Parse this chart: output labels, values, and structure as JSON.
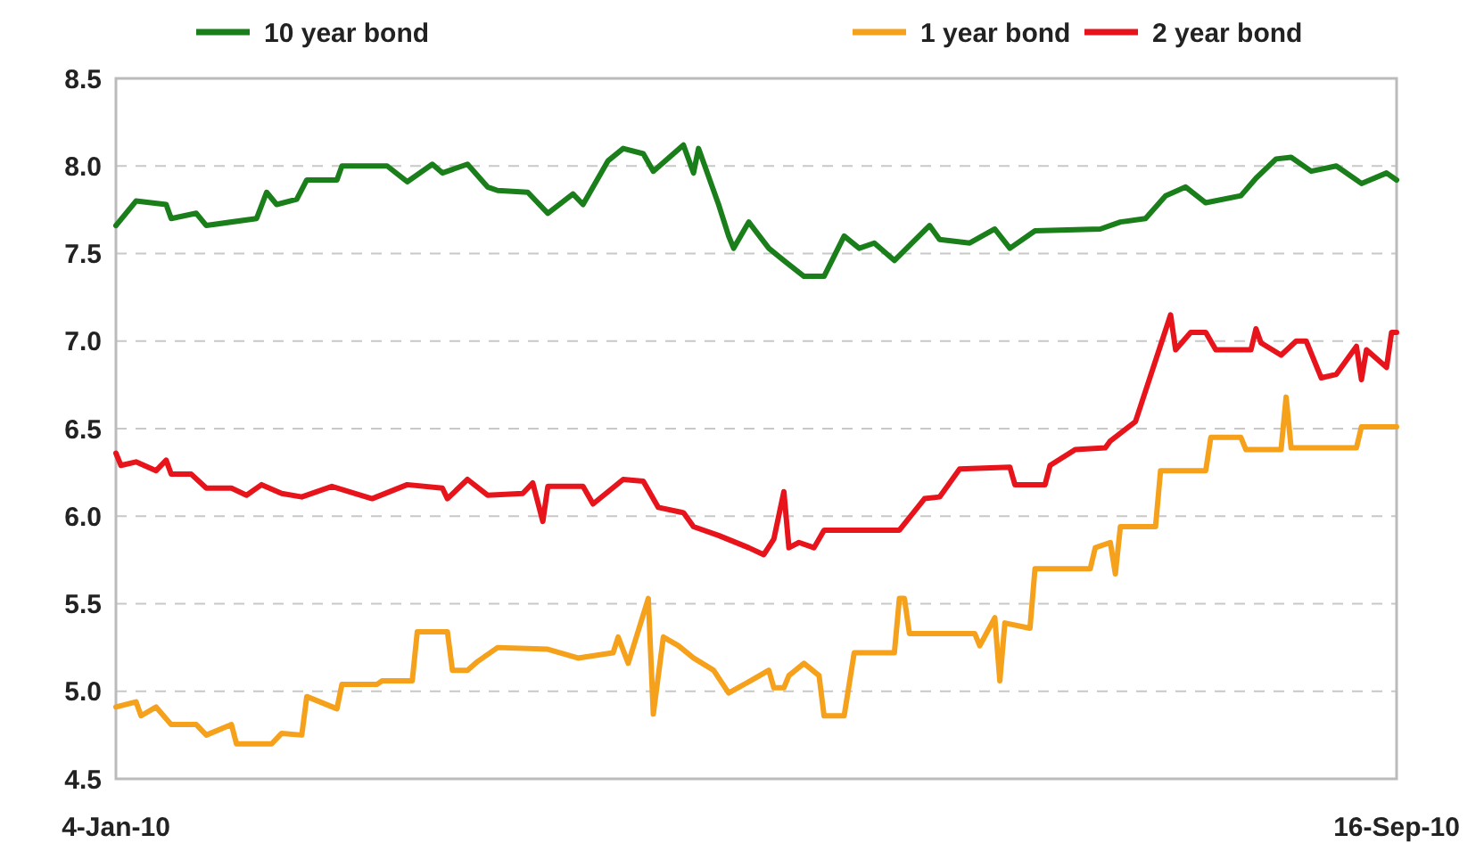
{
  "chart_data": {
    "type": "line",
    "xlim": [
      "2010-01-04",
      "2010-09-16"
    ],
    "xticks": [
      {
        "value": "2010-01-04",
        "label": "4-Jan-10"
      },
      {
        "value": "2010-09-16",
        "label": "16-Sep-10"
      }
    ],
    "ylim": [
      4.5,
      8.5
    ],
    "yticks": [
      4.5,
      {
        "value": 5,
        "label": "5.0"
      },
      5.5,
      {
        "value": 6,
        "label": "6.0"
      },
      6.5,
      {
        "value": 7,
        "label": "7.0"
      },
      7.5,
      {
        "value": 8,
        "label": "8.0"
      },
      8.5
    ],
    "grid": "y",
    "legend": "top",
    "line_style": "solid",
    "marker": "none",
    "series": [
      {
        "name": "10 year bond",
        "color": "#1a7f1a",
        "x": [
          "2010-01-04",
          "2010-01-08",
          "2010-01-14",
          "2010-01-15",
          "2010-01-20",
          "2010-01-22",
          "2010-02-01",
          "2010-02-03",
          "2010-02-05",
          "2010-02-09",
          "2010-02-11",
          "2010-02-17",
          "2010-02-18",
          "2010-02-27",
          "2010-03-03",
          "2010-03-08",
          "2010-03-10",
          "2010-03-15",
          "2010-03-19",
          "2010-03-21",
          "2010-03-27",
          "2010-03-31",
          "2010-04-05",
          "2010-04-07",
          "2010-04-12",
          "2010-04-15",
          "2010-04-19",
          "2010-04-21",
          "2010-04-27",
          "2010-04-29",
          "2010-04-30",
          "2010-05-04",
          "2010-05-06",
          "2010-05-07",
          "2010-05-10",
          "2010-05-14",
          "2010-05-17",
          "2010-05-21",
          "2010-05-25",
          "2010-05-29",
          "2010-06-01",
          "2010-06-04",
          "2010-06-08",
          "2010-06-15",
          "2010-06-17",
          "2010-06-23",
          "2010-06-28",
          "2010-07-01",
          "2010-07-06",
          "2010-07-19",
          "2010-07-23",
          "2010-07-28",
          "2010-08-01",
          "2010-08-05",
          "2010-08-09",
          "2010-08-16",
          "2010-08-19",
          "2010-08-23",
          "2010-08-26",
          "2010-08-30",
          "2010-09-04",
          "2010-09-09",
          "2010-09-14",
          "2010-09-16"
        ],
        "values": [
          7.66,
          7.8,
          7.78,
          7.7,
          7.73,
          7.66,
          7.7,
          7.85,
          7.78,
          7.81,
          7.92,
          7.92,
          8.0,
          8.0,
          7.91,
          8.01,
          7.96,
          8.01,
          7.88,
          7.86,
          7.85,
          7.73,
          7.84,
          7.78,
          8.03,
          8.1,
          8.07,
          7.97,
          8.12,
          7.96,
          8.1,
          7.78,
          7.6,
          7.53,
          7.68,
          7.53,
          7.46,
          7.37,
          7.37,
          7.6,
          7.53,
          7.56,
          7.46,
          7.66,
          7.58,
          7.56,
          7.64,
          7.53,
          7.63,
          7.64,
          7.68,
          7.7,
          7.83,
          7.88,
          7.79,
          7.83,
          7.93,
          8.04,
          8.05,
          7.97,
          8.0,
          7.9,
          7.96,
          7.92
        ]
      },
      {
        "name": "1 year bond",
        "color": "#f5a11c",
        "x": [
          "2010-01-04",
          "2010-01-08",
          "2010-01-09",
          "2010-01-12",
          "2010-01-15",
          "2010-01-20",
          "2010-01-22",
          "2010-01-27",
          "2010-01-28",
          "2010-02-04",
          "2010-02-06",
          "2010-02-10",
          "2010-02-11",
          "2010-02-17",
          "2010-02-18",
          "2010-02-25",
          "2010-02-26",
          "2010-03-04",
          "2010-03-05",
          "2010-03-11",
          "2010-03-12",
          "2010-03-15",
          "2010-03-17",
          "2010-03-21",
          "2010-03-31",
          "2010-04-06",
          "2010-04-13",
          "2010-04-14",
          "2010-04-16",
          "2010-04-20",
          "2010-04-21",
          "2010-04-23",
          "2010-04-26",
          "2010-04-29",
          "2010-05-03",
          "2010-05-06",
          "2010-05-11",
          "2010-05-14",
          "2010-05-15",
          "2010-05-17",
          "2010-05-18",
          "2010-05-21",
          "2010-05-24",
          "2010-05-25",
          "2010-05-29",
          "2010-05-31",
          "2010-06-08",
          "2010-06-09",
          "2010-06-10",
          "2010-06-11",
          "2010-06-24",
          "2010-06-25",
          "2010-06-28",
          "2010-06-29",
          "2010-06-30",
          "2010-07-05",
          "2010-07-06",
          "2010-07-17",
          "2010-07-18",
          "2010-07-21",
          "2010-07-22",
          "2010-07-23",
          "2010-07-30",
          "2010-07-31",
          "2010-08-09",
          "2010-08-10",
          "2010-08-16",
          "2010-08-17",
          "2010-08-24",
          "2010-08-25",
          "2010-08-26",
          "2010-09-08",
          "2010-09-09",
          "2010-09-16"
        ],
        "values": [
          4.91,
          4.94,
          4.86,
          4.91,
          4.81,
          4.81,
          4.75,
          4.81,
          4.7,
          4.7,
          4.76,
          4.75,
          4.97,
          4.9,
          5.04,
          5.04,
          5.06,
          5.06,
          5.34,
          5.34,
          5.12,
          5.12,
          5.17,
          5.25,
          5.24,
          5.19,
          5.22,
          5.31,
          5.16,
          5.53,
          4.87,
          5.31,
          5.26,
          5.19,
          5.12,
          4.99,
          5.07,
          5.12,
          5.02,
          5.02,
          5.09,
          5.16,
          5.09,
          4.86,
          4.86,
          5.22,
          5.22,
          5.53,
          5.53,
          5.33,
          5.33,
          5.26,
          5.42,
          5.06,
          5.39,
          5.36,
          5.7,
          5.7,
          5.82,
          5.85,
          5.67,
          5.94,
          5.94,
          6.26,
          6.26,
          6.45,
          6.45,
          6.38,
          6.38,
          6.68,
          6.39,
          6.39,
          6.51,
          6.51
        ]
      },
      {
        "name": "2 year bond",
        "color": "#e8141c",
        "x": [
          "2010-01-04",
          "2010-01-05",
          "2010-01-08",
          "2010-01-12",
          "2010-01-14",
          "2010-01-15",
          "2010-01-19",
          "2010-01-22",
          "2010-01-27",
          "2010-01-30",
          "2010-02-02",
          "2010-02-06",
          "2010-02-10",
          "2010-02-16",
          "2010-02-24",
          "2010-03-03",
          "2010-03-10",
          "2010-03-11",
          "2010-03-15",
          "2010-03-19",
          "2010-03-26",
          "2010-03-28",
          "2010-03-30",
          "2010-03-31",
          "2010-04-07",
          "2010-04-09",
          "2010-04-15",
          "2010-04-19",
          "2010-04-22",
          "2010-04-27",
          "2010-04-29",
          "2010-05-04",
          "2010-05-10",
          "2010-05-13",
          "2010-05-15",
          "2010-05-17",
          "2010-05-18",
          "2010-05-20",
          "2010-05-23",
          "2010-05-25",
          "2010-06-09",
          "2010-06-14",
          "2010-06-17",
          "2010-06-21",
          "2010-07-01",
          "2010-07-02",
          "2010-07-08",
          "2010-07-09",
          "2010-07-14",
          "2010-07-20",
          "2010-07-21",
          "2010-07-26",
          "2010-08-02",
          "2010-08-03",
          "2010-08-06",
          "2010-08-09",
          "2010-08-11",
          "2010-08-18",
          "2010-08-19",
          "2010-08-20",
          "2010-08-24",
          "2010-08-27",
          "2010-08-29",
          "2010-09-01",
          "2010-09-04",
          "2010-09-08",
          "2010-09-09",
          "2010-09-10",
          "2010-09-14",
          "2010-09-15",
          "2010-09-16"
        ],
        "values": [
          6.36,
          6.29,
          6.31,
          6.26,
          6.32,
          6.24,
          6.24,
          6.16,
          6.16,
          6.12,
          6.18,
          6.13,
          6.11,
          6.17,
          6.1,
          6.18,
          6.16,
          6.1,
          6.21,
          6.12,
          6.13,
          6.19,
          5.97,
          6.17,
          6.17,
          6.07,
          6.21,
          6.2,
          6.05,
          6.02,
          5.94,
          5.89,
          5.82,
          5.78,
          5.87,
          6.14,
          5.82,
          5.85,
          5.82,
          5.92,
          5.92,
          6.1,
          6.11,
          6.27,
          6.28,
          6.18,
          6.18,
          6.29,
          6.38,
          6.39,
          6.43,
          6.54,
          7.15,
          6.95,
          7.05,
          7.05,
          6.95,
          6.95,
          7.07,
          6.99,
          6.92,
          7.0,
          7.0,
          6.79,
          6.81,
          6.97,
          6.78,
          6.95,
          6.85,
          7.05,
          7.05
        ]
      }
    ]
  }
}
